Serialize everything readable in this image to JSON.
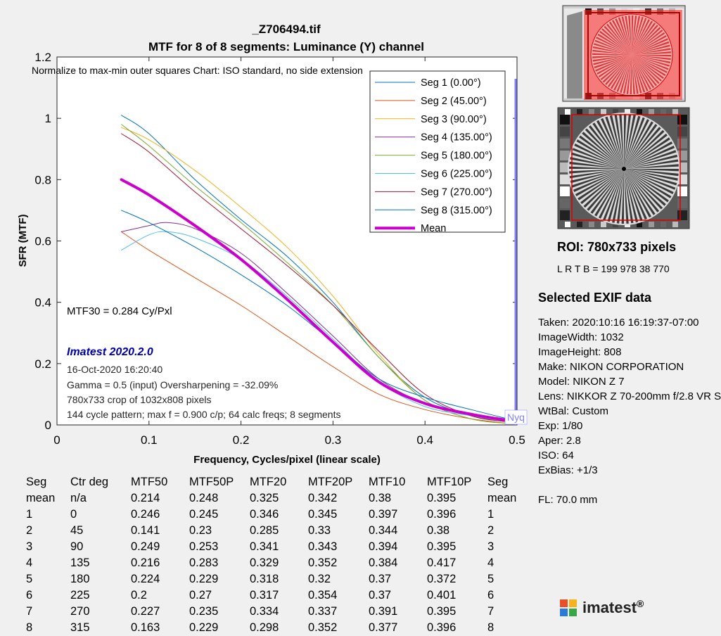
{
  "chart_data": {
    "type": "line",
    "title": "_Z706494.tif",
    "subtitle": "MTF for 8 of 8 segments:  Luminance (Y) channel",
    "xlabel": "Frequency, Cycles/pixel (linear scale)",
    "ylabel": "SFR (MTF)",
    "xlim": [
      0,
      0.5
    ],
    "ylim": [
      0,
      1.2
    ],
    "x_ticks": [
      "0",
      "0.1",
      "0.2",
      "0.3",
      "0.4",
      "0.5"
    ],
    "y_ticks": [
      "0",
      "0.2",
      "0.4",
      "0.6",
      "0.8",
      "1",
      "1.2"
    ],
    "grid": false,
    "legend_position": "top-right",
    "nyquist_label": "Nyq",
    "series": [
      {
        "name": "Seg 1 (0.00°)",
        "color": "#0072bd",
        "width": 1,
        "x": [
          0.07,
          0.1,
          0.15,
          0.2,
          0.25,
          0.3,
          0.35,
          0.4,
          0.45,
          0.49
        ],
        "y": [
          1.01,
          0.95,
          0.8,
          0.67,
          0.55,
          0.4,
          0.22,
          0.09,
          0.03,
          0.01
        ]
      },
      {
        "name": "Seg 2 (45.00°)",
        "color": "#d95319",
        "width": 1,
        "x": [
          0.07,
          0.1,
          0.15,
          0.2,
          0.25,
          0.3,
          0.35,
          0.4,
          0.45,
          0.49
        ],
        "y": [
          0.63,
          0.57,
          0.48,
          0.39,
          0.29,
          0.19,
          0.1,
          0.05,
          0.02,
          0.005
        ]
      },
      {
        "name": "Seg 3 (90.00°)",
        "color": "#edb120",
        "width": 1,
        "x": [
          0.07,
          0.1,
          0.15,
          0.2,
          0.25,
          0.3,
          0.35,
          0.4,
          0.45,
          0.49
        ],
        "y": [
          0.97,
          0.93,
          0.83,
          0.71,
          0.58,
          0.42,
          0.23,
          0.08,
          0.02,
          0.005
        ]
      },
      {
        "name": "Seg 4 (135.00°)",
        "color": "#7e2f8e",
        "width": 1,
        "x": [
          0.07,
          0.1,
          0.12,
          0.15,
          0.2,
          0.25,
          0.3,
          0.35,
          0.4,
          0.45,
          0.49
        ],
        "y": [
          0.63,
          0.65,
          0.66,
          0.64,
          0.56,
          0.43,
          0.29,
          0.15,
          0.07,
          0.03,
          0.01
        ]
      },
      {
        "name": "Seg 5 (180.00°)",
        "color": "#77ac30",
        "width": 1,
        "x": [
          0.07,
          0.1,
          0.15,
          0.2,
          0.25,
          0.3,
          0.35,
          0.4,
          0.45,
          0.49
        ],
        "y": [
          0.98,
          0.91,
          0.78,
          0.66,
          0.53,
          0.39,
          0.22,
          0.08,
          0.02,
          0.005
        ]
      },
      {
        "name": "Seg 6 (225.00°)",
        "color": "#4dbeee",
        "width": 1,
        "x": [
          0.07,
          0.1,
          0.12,
          0.15,
          0.2,
          0.25,
          0.3,
          0.35,
          0.4,
          0.45,
          0.49
        ],
        "y": [
          0.57,
          0.62,
          0.63,
          0.61,
          0.54,
          0.42,
          0.28,
          0.14,
          0.06,
          0.03,
          0.01
        ]
      },
      {
        "name": "Seg 7 (270.00°)",
        "color": "#a2142f",
        "width": 1,
        "x": [
          0.07,
          0.1,
          0.15,
          0.2,
          0.25,
          0.3,
          0.35,
          0.4,
          0.45,
          0.49
        ],
        "y": [
          0.95,
          0.89,
          0.76,
          0.64,
          0.52,
          0.39,
          0.24,
          0.1,
          0.03,
          0.01
        ]
      },
      {
        "name": "Seg 8 (315.00°)",
        "color": "#0072bd",
        "width": 1,
        "x": [
          0.07,
          0.1,
          0.15,
          0.2,
          0.25,
          0.3,
          0.35,
          0.4,
          0.45,
          0.49
        ],
        "y": [
          0.7,
          0.66,
          0.58,
          0.49,
          0.39,
          0.27,
          0.15,
          0.09,
          0.05,
          0.02
        ]
      },
      {
        "name": "Mean",
        "color": "#cc00cc",
        "width": 4,
        "x": [
          0.07,
          0.1,
          0.15,
          0.2,
          0.25,
          0.3,
          0.35,
          0.4,
          0.45,
          0.49
        ],
        "y": [
          0.8,
          0.75,
          0.65,
          0.54,
          0.41,
          0.27,
          0.14,
          0.07,
          0.035,
          0.015
        ]
      }
    ],
    "annotations": {
      "normalize": "Normalize to max-min outer squares    Chart: ISO standard, no side extension",
      "mtf30": "MTF30 = 0.284 Cy/Pxl",
      "version": "Imatest 2020.2.0",
      "info_lines": [
        "16-Oct-2020 16:20:40",
        "Gamma = 0.5 (input)  Oversharpening = -32.09%",
        "780x733 crop of 1032x808 pixels",
        "144 cycle pattern; max f = 0.900 c/p;  64 calc freqs;  8 segments"
      ]
    }
  },
  "roi": {
    "title": "ROI:  780x733 pixels",
    "lrtb": "L R  T B = 199 978  38 770"
  },
  "exif": {
    "heading": "Selected EXIF data",
    "lines": [
      "Taken: 2020:10:16 16:19:37-07:00",
      "ImageWidth:  1032",
      "ImageHeight:  808",
      "Make:  NIKON CORPORATION",
      "Model: NIKON Z 7",
      "Lens:  NIKKOR Z 70-200mm f/2.8 VR S",
      "WtBal:  Custom",
      "Exp:   1/80",
      "Aper:  2.8",
      "ISO:   64",
      "ExBias:  +1/3"
    ],
    "fl": "FL:  70.0 mm"
  },
  "results_table": {
    "headers": [
      "Seg",
      "Ctr deg",
      "MTF50",
      "MTF50P",
      "MTF20",
      "MTF20P",
      "MTF10",
      "MTF10P",
      "Seg"
    ],
    "rows": [
      [
        "mean",
        "n/a",
        "0.214",
        "0.248",
        "0.325",
        "0.342",
        "0.38",
        "0.395",
        "mean"
      ],
      [
        "1",
        "0",
        "0.246",
        "0.245",
        "0.346",
        "0.345",
        "0.397",
        "0.396",
        "1"
      ],
      [
        "2",
        "45",
        "0.141",
        "0.23",
        "0.285",
        "0.33",
        "0.344",
        "0.38",
        "2"
      ],
      [
        "3",
        "90",
        "0.249",
        "0.253",
        "0.341",
        "0.343",
        "0.394",
        "0.395",
        "3"
      ],
      [
        "4",
        "135",
        "0.216",
        "0.283",
        "0.329",
        "0.352",
        "0.384",
        "0.417",
        "4"
      ],
      [
        "5",
        "180",
        "0.224",
        "0.229",
        "0.318",
        "0.32",
        "0.37",
        "0.372",
        "5"
      ],
      [
        "6",
        "225",
        "0.2",
        "0.27",
        "0.317",
        "0.354",
        "0.37",
        "0.401",
        "6"
      ],
      [
        "7",
        "270",
        "0.227",
        "0.235",
        "0.334",
        "0.337",
        "0.391",
        "0.395",
        "7"
      ],
      [
        "8",
        "315",
        "0.163",
        "0.229",
        "0.298",
        "0.352",
        "0.377",
        "0.396",
        "8"
      ]
    ]
  },
  "logo": {
    "text": "imatest",
    "reg": "®"
  }
}
